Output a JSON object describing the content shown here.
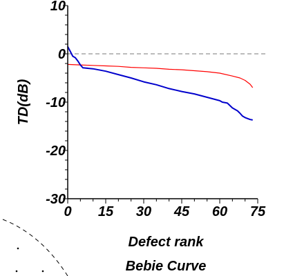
{
  "chart_data": {
    "type": "line",
    "xlabel": "Defect rank",
    "ylabel": "TD(dB)",
    "caption": "Bebie Curve",
    "xlim": [
      0,
      75
    ],
    "ylim": [
      -30,
      10
    ],
    "x_ticks": [
      0,
      15,
      30,
      45,
      60,
      75
    ],
    "x_tick_labels": [
      "0",
      "15",
      "30",
      "45",
      "60",
      "75"
    ],
    "y_ticks": [
      10,
      0,
      -10,
      -20,
      -30
    ],
    "y_tick_labels": [
      "10",
      "0",
      "-10",
      "-20",
      "-30"
    ],
    "reference_line": {
      "y": 0,
      "style": "dashed",
      "color": "#777777"
    },
    "grid": false,
    "series": [
      {
        "color": "#ff0000",
        "x": [
          0,
          5,
          10,
          15,
          20,
          25,
          30,
          35,
          40,
          45,
          50,
          55,
          60,
          65,
          68,
          70,
          72,
          73
        ],
        "values": [
          -2.2,
          -2.3,
          -2.4,
          -2.5,
          -2.6,
          -2.8,
          -2.9,
          -3.0,
          -3.2,
          -3.3,
          -3.5,
          -3.7,
          -4.0,
          -4.6,
          -5.0,
          -5.5,
          -6.3,
          -7.0
        ]
      },
      {
        "color": "#0000cc",
        "x": [
          0,
          1,
          2,
          3,
          4,
          5,
          6,
          10,
          15,
          20,
          25,
          30,
          35,
          40,
          45,
          50,
          55,
          60,
          61,
          63,
          65,
          67,
          68,
          69,
          70,
          71,
          72,
          73
        ],
        "values": [
          1.5,
          0.5,
          -0.5,
          -0.8,
          -1.5,
          -2.3,
          -2.9,
          -3.1,
          -3.6,
          -4.3,
          -5.0,
          -5.8,
          -6.4,
          -7.2,
          -7.8,
          -8.3,
          -9.0,
          -9.7,
          -10.0,
          -10.2,
          -11.2,
          -11.8,
          -12.3,
          -12.9,
          -13.2,
          -13.4,
          -13.6,
          -13.7
        ]
      }
    ]
  }
}
